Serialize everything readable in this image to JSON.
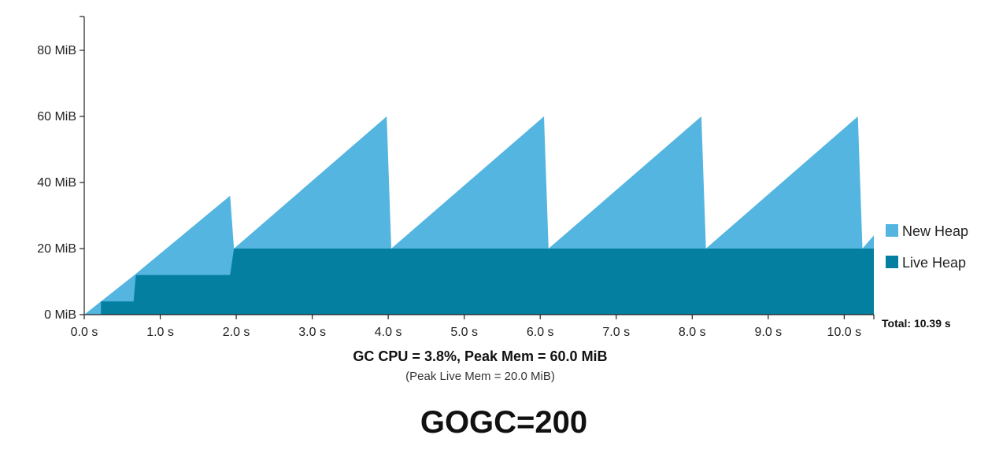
{
  "chart_data": {
    "type": "area",
    "x_unit": "s",
    "ylim": [
      0,
      90
    ],
    "xlim": [
      0,
      10.39
    ],
    "y_ticks": [
      {
        "value": 0,
        "label": "0 MiB"
      },
      {
        "value": 20,
        "label": "20 MiB"
      },
      {
        "value": 40,
        "label": "40 MiB"
      },
      {
        "value": 60,
        "label": "60 MiB"
      },
      {
        "value": 80,
        "label": "80 MiB"
      }
    ],
    "x_ticks": [
      {
        "value": 0,
        "label": "0.0 s"
      },
      {
        "value": 1,
        "label": "1.0 s"
      },
      {
        "value": 2,
        "label": "2.0 s"
      },
      {
        "value": 3,
        "label": "3.0 s"
      },
      {
        "value": 4,
        "label": "4.0 s"
      },
      {
        "value": 5,
        "label": "5.0 s"
      },
      {
        "value": 6,
        "label": "6.0 s"
      },
      {
        "value": 7,
        "label": "7.0 s"
      },
      {
        "value": 8,
        "label": "8.0 s"
      },
      {
        "value": 9,
        "label": "9.0 s"
      },
      {
        "value": 10,
        "label": "10.0 s"
      }
    ],
    "series": [
      {
        "name": "New Heap",
        "color": "#53b5e0",
        "points": [
          [
            0,
            0
          ],
          [
            0.66,
            12
          ],
          [
            1.92,
            36
          ],
          [
            1.97,
            20
          ],
          [
            3.98,
            60
          ],
          [
            4.04,
            20
          ],
          [
            6.05,
            60
          ],
          [
            6.11,
            20
          ],
          [
            8.12,
            60
          ],
          [
            8.18,
            20
          ],
          [
            10.18,
            60
          ],
          [
            10.24,
            20
          ],
          [
            10.39,
            24
          ],
          [
            10.39,
            0
          ]
        ]
      },
      {
        "name": "Live Heap",
        "color": "#047fa0",
        "points": [
          [
            0.22,
            0
          ],
          [
            0.22,
            4
          ],
          [
            0.65,
            4
          ],
          [
            0.68,
            12
          ],
          [
            1.92,
            12
          ],
          [
            1.97,
            20
          ],
          [
            10.39,
            20
          ],
          [
            10.39,
            0
          ]
        ]
      }
    ],
    "legend": {
      "position": "right",
      "entries": [
        "New Heap",
        "Live Heap"
      ]
    },
    "total_label": "Total: 10.39 s",
    "grid": false
  },
  "stats": {
    "main": "GC CPU = 3.8%, Peak Mem = 60.0 MiB",
    "sub": "(Peak Live Mem = 20.0 MiB)"
  },
  "setting_title": "GOGC=200"
}
